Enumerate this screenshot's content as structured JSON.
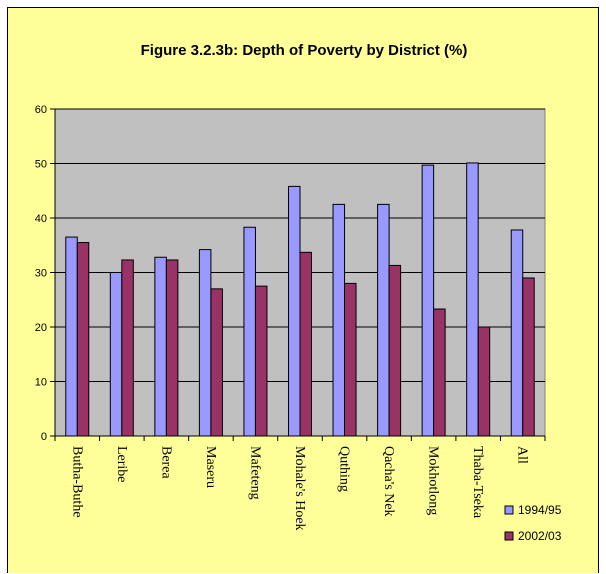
{
  "chart_data": {
    "type": "bar",
    "title": "Figure 3.2.3b: Depth of Poverty by District (%)",
    "xlabel": "",
    "ylabel": "",
    "ylim": [
      0,
      60
    ],
    "yticks": [
      0,
      10,
      20,
      30,
      40,
      50,
      60
    ],
    "grid": true,
    "legend_position": "bottom-right",
    "plot_background": "#c0c0c0",
    "chart_background": "#ffff99",
    "categories": [
      "Butha-Buthe",
      "Leribe",
      "Berea",
      "Maseru",
      "Mafeteng",
      "Mohale's Hoek",
      "Quthing",
      "Qacha's Nek",
      "Mokhotlong",
      "Thaba-Tseka",
      "All"
    ],
    "series": [
      {
        "name": "1994/95",
        "color": "#9999ff",
        "values": [
          36.5,
          30,
          32.8,
          34.2,
          38.3,
          45.8,
          42.5,
          42.5,
          49.7,
          50.1,
          37.8
        ]
      },
      {
        "name": "2002/03",
        "color": "#993366",
        "values": [
          35.5,
          32.3,
          32.3,
          27,
          27.5,
          33.7,
          28,
          31.3,
          23.3,
          20,
          29
        ]
      }
    ]
  }
}
